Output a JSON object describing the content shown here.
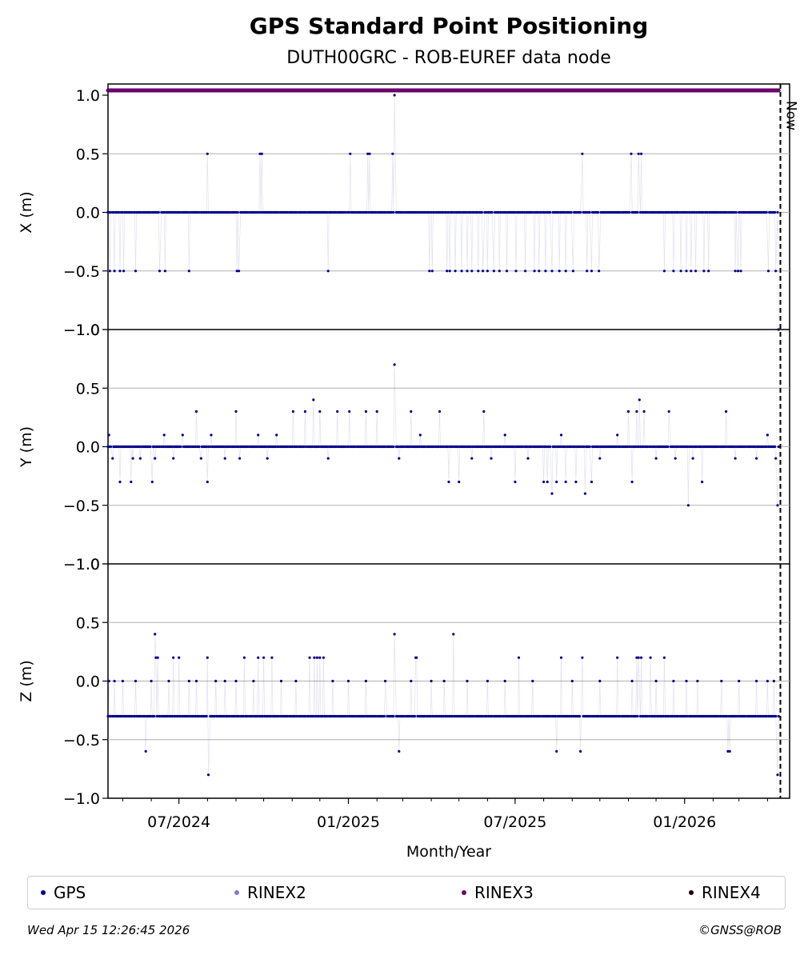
{
  "chart_data": {
    "type": "scatter",
    "title": "GPS Standard Point Positioning",
    "subtitle": "DUTH00GRC - ROB-EUREF data node",
    "xlabel": "Month/Year",
    "x_ticks": [
      "07/2024",
      "01/2025",
      "07/2025",
      "01/2026"
    ],
    "x_range": [
      "2024-04-15",
      "2026-04-25"
    ],
    "now_date": "2026-04-15",
    "now_label": "Now",
    "panels": [
      {
        "ylabel": "X (m)",
        "ylim": [
          -1.0,
          1.0
        ],
        "yticks": [
          -1.0,
          -0.5,
          0.0,
          0.5,
          1.0
        ],
        "base": 0.0,
        "events": [
          [
            "2024-04-17",
            -0.5
          ],
          [
            "2024-04-22",
            -0.5
          ],
          [
            "2024-04-28",
            -0.5
          ],
          [
            "2024-05-02",
            -0.5
          ],
          [
            "2024-05-15",
            -0.5
          ],
          [
            "2024-06-10",
            -0.5
          ],
          [
            "2024-06-16",
            -0.5
          ],
          [
            "2024-07-12",
            -0.5
          ],
          [
            "2024-08-01",
            0.5
          ],
          [
            "2024-09-02",
            -0.5
          ],
          [
            "2024-09-04",
            -0.5
          ],
          [
            "2024-09-27",
            0.5
          ],
          [
            "2024-09-29",
            0.5
          ],
          [
            "2024-12-10",
            -0.5
          ],
          [
            "2025-01-03",
            0.5
          ],
          [
            "2025-01-22",
            0.5
          ],
          [
            "2025-01-24",
            0.5
          ],
          [
            "2025-02-18",
            0.5
          ],
          [
            "2025-02-20",
            1.0
          ],
          [
            "2025-03-30",
            -0.5
          ],
          [
            "2025-04-02",
            -0.5
          ],
          [
            "2025-04-18",
            -0.5
          ],
          [
            "2025-04-21",
            -0.5
          ],
          [
            "2025-04-27",
            -0.5
          ],
          [
            "2025-05-04",
            -0.5
          ],
          [
            "2025-05-10",
            -0.5
          ],
          [
            "2025-05-15",
            -0.5
          ],
          [
            "2025-05-22",
            -0.5
          ],
          [
            "2025-05-27",
            -0.5
          ],
          [
            "2025-06-01",
            -0.5
          ],
          [
            "2025-06-08",
            -0.5
          ],
          [
            "2025-06-14",
            -0.5
          ],
          [
            "2025-06-22",
            -0.5
          ],
          [
            "2025-07-02",
            -0.5
          ],
          [
            "2025-07-12",
            -0.5
          ],
          [
            "2025-07-22",
            -0.5
          ],
          [
            "2025-07-27",
            -0.5
          ],
          [
            "2025-08-03",
            -0.5
          ],
          [
            "2025-08-10",
            -0.5
          ],
          [
            "2025-08-18",
            -0.5
          ],
          [
            "2025-08-25",
            -0.5
          ],
          [
            "2025-09-02",
            -0.5
          ],
          [
            "2025-09-12",
            0.5
          ],
          [
            "2025-09-17",
            -0.5
          ],
          [
            "2025-09-22",
            -0.5
          ],
          [
            "2025-09-30",
            -0.5
          ],
          [
            "2025-11-04",
            0.5
          ],
          [
            "2025-11-12",
            0.5
          ],
          [
            "2025-11-15",
            0.5
          ],
          [
            "2025-12-10",
            -0.5
          ],
          [
            "2025-12-20",
            -0.5
          ],
          [
            "2025-12-28",
            -0.5
          ],
          [
            "2026-01-03",
            -0.5
          ],
          [
            "2026-01-08",
            -0.5
          ],
          [
            "2026-01-13",
            -0.5
          ],
          [
            "2026-01-22",
            -0.5
          ],
          [
            "2026-01-27",
            -0.5
          ],
          [
            "2026-02-25",
            -0.5
          ],
          [
            "2026-02-28",
            -0.5
          ],
          [
            "2026-03-03",
            -0.5
          ],
          [
            "2026-04-02",
            -0.5
          ],
          [
            "2026-04-10",
            -0.5
          ],
          [
            "2026-04-13",
            -1.0
          ]
        ]
      },
      {
        "ylabel": "Y (m)",
        "ylim": [
          -1.0,
          1.0
        ],
        "yticks": [
          -1.0,
          -0.5,
          0.0,
          0.5,
          1.0
        ],
        "base": 0.0,
        "events": [
          [
            "2024-04-16",
            0.1
          ],
          [
            "2024-04-20",
            -0.1
          ],
          [
            "2024-04-28",
            -0.3
          ],
          [
            "2024-05-10",
            -0.3
          ],
          [
            "2024-05-12",
            -0.1
          ],
          [
            "2024-05-20",
            -0.1
          ],
          [
            "2024-06-02",
            -0.3
          ],
          [
            "2024-06-05",
            -0.1
          ],
          [
            "2024-06-15",
            0.1
          ],
          [
            "2024-06-25",
            -0.1
          ],
          [
            "2024-07-05",
            0.1
          ],
          [
            "2024-07-20",
            0.3
          ],
          [
            "2024-07-25",
            -0.1
          ],
          [
            "2024-08-01",
            -0.3
          ],
          [
            "2024-08-05",
            0.1
          ],
          [
            "2024-08-20",
            -0.1
          ],
          [
            "2024-09-01",
            0.3
          ],
          [
            "2024-09-05",
            -0.1
          ],
          [
            "2024-09-25",
            0.1
          ],
          [
            "2024-10-05",
            -0.1
          ],
          [
            "2024-10-15",
            0.1
          ],
          [
            "2024-11-02",
            0.3
          ],
          [
            "2024-11-15",
            0.3
          ],
          [
            "2024-11-24",
            0.4
          ],
          [
            "2024-12-01",
            0.3
          ],
          [
            "2024-12-10",
            -0.1
          ],
          [
            "2024-12-20",
            0.3
          ],
          [
            "2025-01-02",
            0.3
          ],
          [
            "2025-01-20",
            0.3
          ],
          [
            "2025-02-01",
            0.3
          ],
          [
            "2025-02-20",
            0.7
          ],
          [
            "2025-02-25",
            -0.1
          ],
          [
            "2025-03-10",
            0.3
          ],
          [
            "2025-03-20",
            0.1
          ],
          [
            "2025-04-10",
            0.3
          ],
          [
            "2025-04-20",
            -0.3
          ],
          [
            "2025-05-01",
            -0.3
          ],
          [
            "2025-05-15",
            -0.1
          ],
          [
            "2025-05-28",
            0.3
          ],
          [
            "2025-06-05",
            -0.1
          ],
          [
            "2025-06-20",
            0.1
          ],
          [
            "2025-07-01",
            -0.3
          ],
          [
            "2025-07-15",
            -0.1
          ],
          [
            "2025-08-01",
            -0.3
          ],
          [
            "2025-08-05",
            -0.3
          ],
          [
            "2025-08-10",
            -0.4
          ],
          [
            "2025-08-15",
            -0.3
          ],
          [
            "2025-08-20",
            0.1
          ],
          [
            "2025-08-25",
            -0.3
          ],
          [
            "2025-09-05",
            -0.3
          ],
          [
            "2025-09-15",
            -0.4
          ],
          [
            "2025-09-22",
            -0.3
          ],
          [
            "2025-10-01",
            -0.1
          ],
          [
            "2025-10-20",
            0.1
          ],
          [
            "2025-11-01",
            0.3
          ],
          [
            "2025-11-05",
            -0.3
          ],
          [
            "2025-11-10",
            0.3
          ],
          [
            "2025-11-13",
            0.4
          ],
          [
            "2025-11-18",
            0.3
          ],
          [
            "2025-12-01",
            -0.1
          ],
          [
            "2025-12-15",
            0.3
          ],
          [
            "2025-12-22",
            -0.1
          ],
          [
            "2026-01-05",
            -0.5
          ],
          [
            "2026-01-10",
            -0.1
          ],
          [
            "2026-01-20",
            -0.3
          ],
          [
            "2026-02-15",
            0.3
          ],
          [
            "2026-02-25",
            -0.1
          ],
          [
            "2026-03-20",
            -0.1
          ],
          [
            "2026-04-01",
            0.1
          ],
          [
            "2026-04-10",
            -0.1
          ],
          [
            "2026-04-12",
            -0.5
          ]
        ]
      },
      {
        "ylabel": "Z (m)",
        "ylim": [
          -1.0,
          1.0
        ],
        "yticks": [
          -1.0,
          -0.5,
          0.0,
          0.5,
          1.0
        ],
        "base": -0.3,
        "events": [
          [
            "2024-04-16",
            0.0
          ],
          [
            "2024-04-22",
            0.0
          ],
          [
            "2024-05-01",
            0.0
          ],
          [
            "2024-05-15",
            0.0
          ],
          [
            "2024-05-26",
            -0.6
          ],
          [
            "2024-06-01",
            0.0
          ],
          [
            "2024-06-05",
            0.4
          ],
          [
            "2024-06-06",
            0.2
          ],
          [
            "2024-06-08",
            0.2
          ],
          [
            "2024-06-20",
            0.0
          ],
          [
            "2024-06-25",
            0.2
          ],
          [
            "2024-07-01",
            0.2
          ],
          [
            "2024-07-12",
            0.0
          ],
          [
            "2024-07-20",
            0.0
          ],
          [
            "2024-08-01",
            0.2
          ],
          [
            "2024-08-02",
            -0.8
          ],
          [
            "2024-08-10",
            0.0
          ],
          [
            "2024-08-20",
            0.0
          ],
          [
            "2024-09-01",
            0.0
          ],
          [
            "2024-09-10",
            0.2
          ],
          [
            "2024-09-20",
            0.0
          ],
          [
            "2024-09-25",
            0.2
          ],
          [
            "2024-10-01",
            0.2
          ],
          [
            "2024-10-10",
            0.2
          ],
          [
            "2024-10-20",
            0.0
          ],
          [
            "2024-11-05",
            0.0
          ],
          [
            "2024-11-20",
            0.2
          ],
          [
            "2024-11-25",
            0.2
          ],
          [
            "2024-11-28",
            0.2
          ],
          [
            "2024-12-01",
            0.2
          ],
          [
            "2024-12-05",
            0.2
          ],
          [
            "2024-12-15",
            0.0
          ],
          [
            "2025-01-01",
            0.0
          ],
          [
            "2025-01-20",
            0.0
          ],
          [
            "2025-02-10",
            0.0
          ],
          [
            "2025-02-20",
            0.4
          ],
          [
            "2025-02-25",
            -0.6
          ],
          [
            "2025-03-10",
            0.0
          ],
          [
            "2025-03-15",
            0.2
          ],
          [
            "2025-03-16",
            0.2
          ],
          [
            "2025-04-01",
            0.0
          ],
          [
            "2025-04-15",
            0.0
          ],
          [
            "2025-04-25",
            0.4
          ],
          [
            "2025-05-10",
            0.0
          ],
          [
            "2025-06-01",
            0.0
          ],
          [
            "2025-06-20",
            0.0
          ],
          [
            "2025-07-05",
            0.2
          ],
          [
            "2025-07-20",
            0.0
          ],
          [
            "2025-08-15",
            -0.6
          ],
          [
            "2025-08-20",
            0.2
          ],
          [
            "2025-09-01",
            0.0
          ],
          [
            "2025-09-10",
            -0.6
          ],
          [
            "2025-09-12",
            0.2
          ],
          [
            "2025-10-01",
            0.0
          ],
          [
            "2025-10-20",
            0.2
          ],
          [
            "2025-11-05",
            0.0
          ],
          [
            "2025-11-10",
            0.2
          ],
          [
            "2025-11-12",
            0.2
          ],
          [
            "2025-11-15",
            0.2
          ],
          [
            "2025-11-25",
            0.2
          ],
          [
            "2025-12-01",
            0.0
          ],
          [
            "2025-12-10",
            0.2
          ],
          [
            "2025-12-20",
            0.0
          ],
          [
            "2026-01-03",
            0.0
          ],
          [
            "2026-01-15",
            0.0
          ],
          [
            "2026-02-10",
            0.0
          ],
          [
            "2026-02-17",
            -0.6
          ],
          [
            "2026-02-19",
            -0.6
          ],
          [
            "2026-03-01",
            0.0
          ],
          [
            "2026-03-20",
            0.0
          ],
          [
            "2026-04-01",
            0.0
          ],
          [
            "2026-04-08",
            0.0
          ],
          [
            "2026-04-12",
            -0.8
          ]
        ]
      }
    ],
    "rinex_bar": {
      "color": "#6a006a",
      "segments": [
        [
          "2024-04-15",
          "2025-04-30"
        ],
        [
          "2025-05-01",
          "2026-04-13"
        ]
      ]
    },
    "legend": [
      {
        "label": "GPS",
        "color": "#00008b"
      },
      {
        "label": "RINEX2",
        "color": "#7b7bc8"
      },
      {
        "label": "RINEX3",
        "color": "#6a006a"
      },
      {
        "label": "RINEX4",
        "color": "#200010"
      }
    ],
    "legend_position": "below",
    "grid": "horizontal",
    "point_color": "#00008b"
  },
  "footer": {
    "timestamp": "Wed Apr 15 12:26:45 2026",
    "copyright": "©GNSS@ROB"
  }
}
